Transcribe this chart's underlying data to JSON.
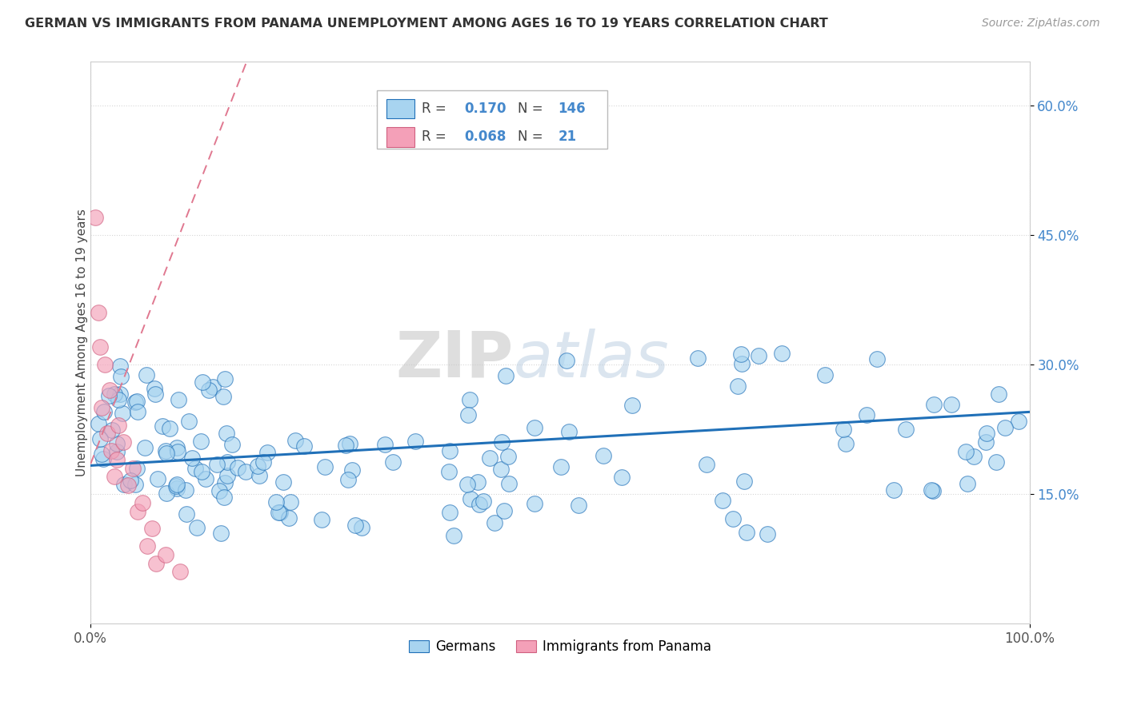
{
  "title": "GERMAN VS IMMIGRANTS FROM PANAMA UNEMPLOYMENT AMONG AGES 16 TO 19 YEARS CORRELATION CHART",
  "source": "Source: ZipAtlas.com",
  "ylabel": "Unemployment Among Ages 16 to 19 years",
  "xlim": [
    0.0,
    1.0
  ],
  "ylim": [
    0.0,
    0.65
  ],
  "y_ticks": [
    0.15,
    0.3,
    0.45,
    0.6
  ],
  "y_tick_labels": [
    "15.0%",
    "30.0%",
    "45.0%",
    "60.0%"
  ],
  "R_german": 0.17,
  "N_german": 146,
  "R_panama": 0.068,
  "N_panama": 21,
  "blue_color": "#a8d4f0",
  "pink_color": "#f4a0b8",
  "blue_line_color": "#2070b8",
  "pink_line_color": "#e07890",
  "legend_labels": [
    "Germans",
    "Immigrants from Panama"
  ],
  "background_color": "#ffffff",
  "title_color": "#333333",
  "source_color": "#999999",
  "ylabel_color": "#444444",
  "ytick_color": "#4488cc",
  "grid_color": "#cccccc"
}
